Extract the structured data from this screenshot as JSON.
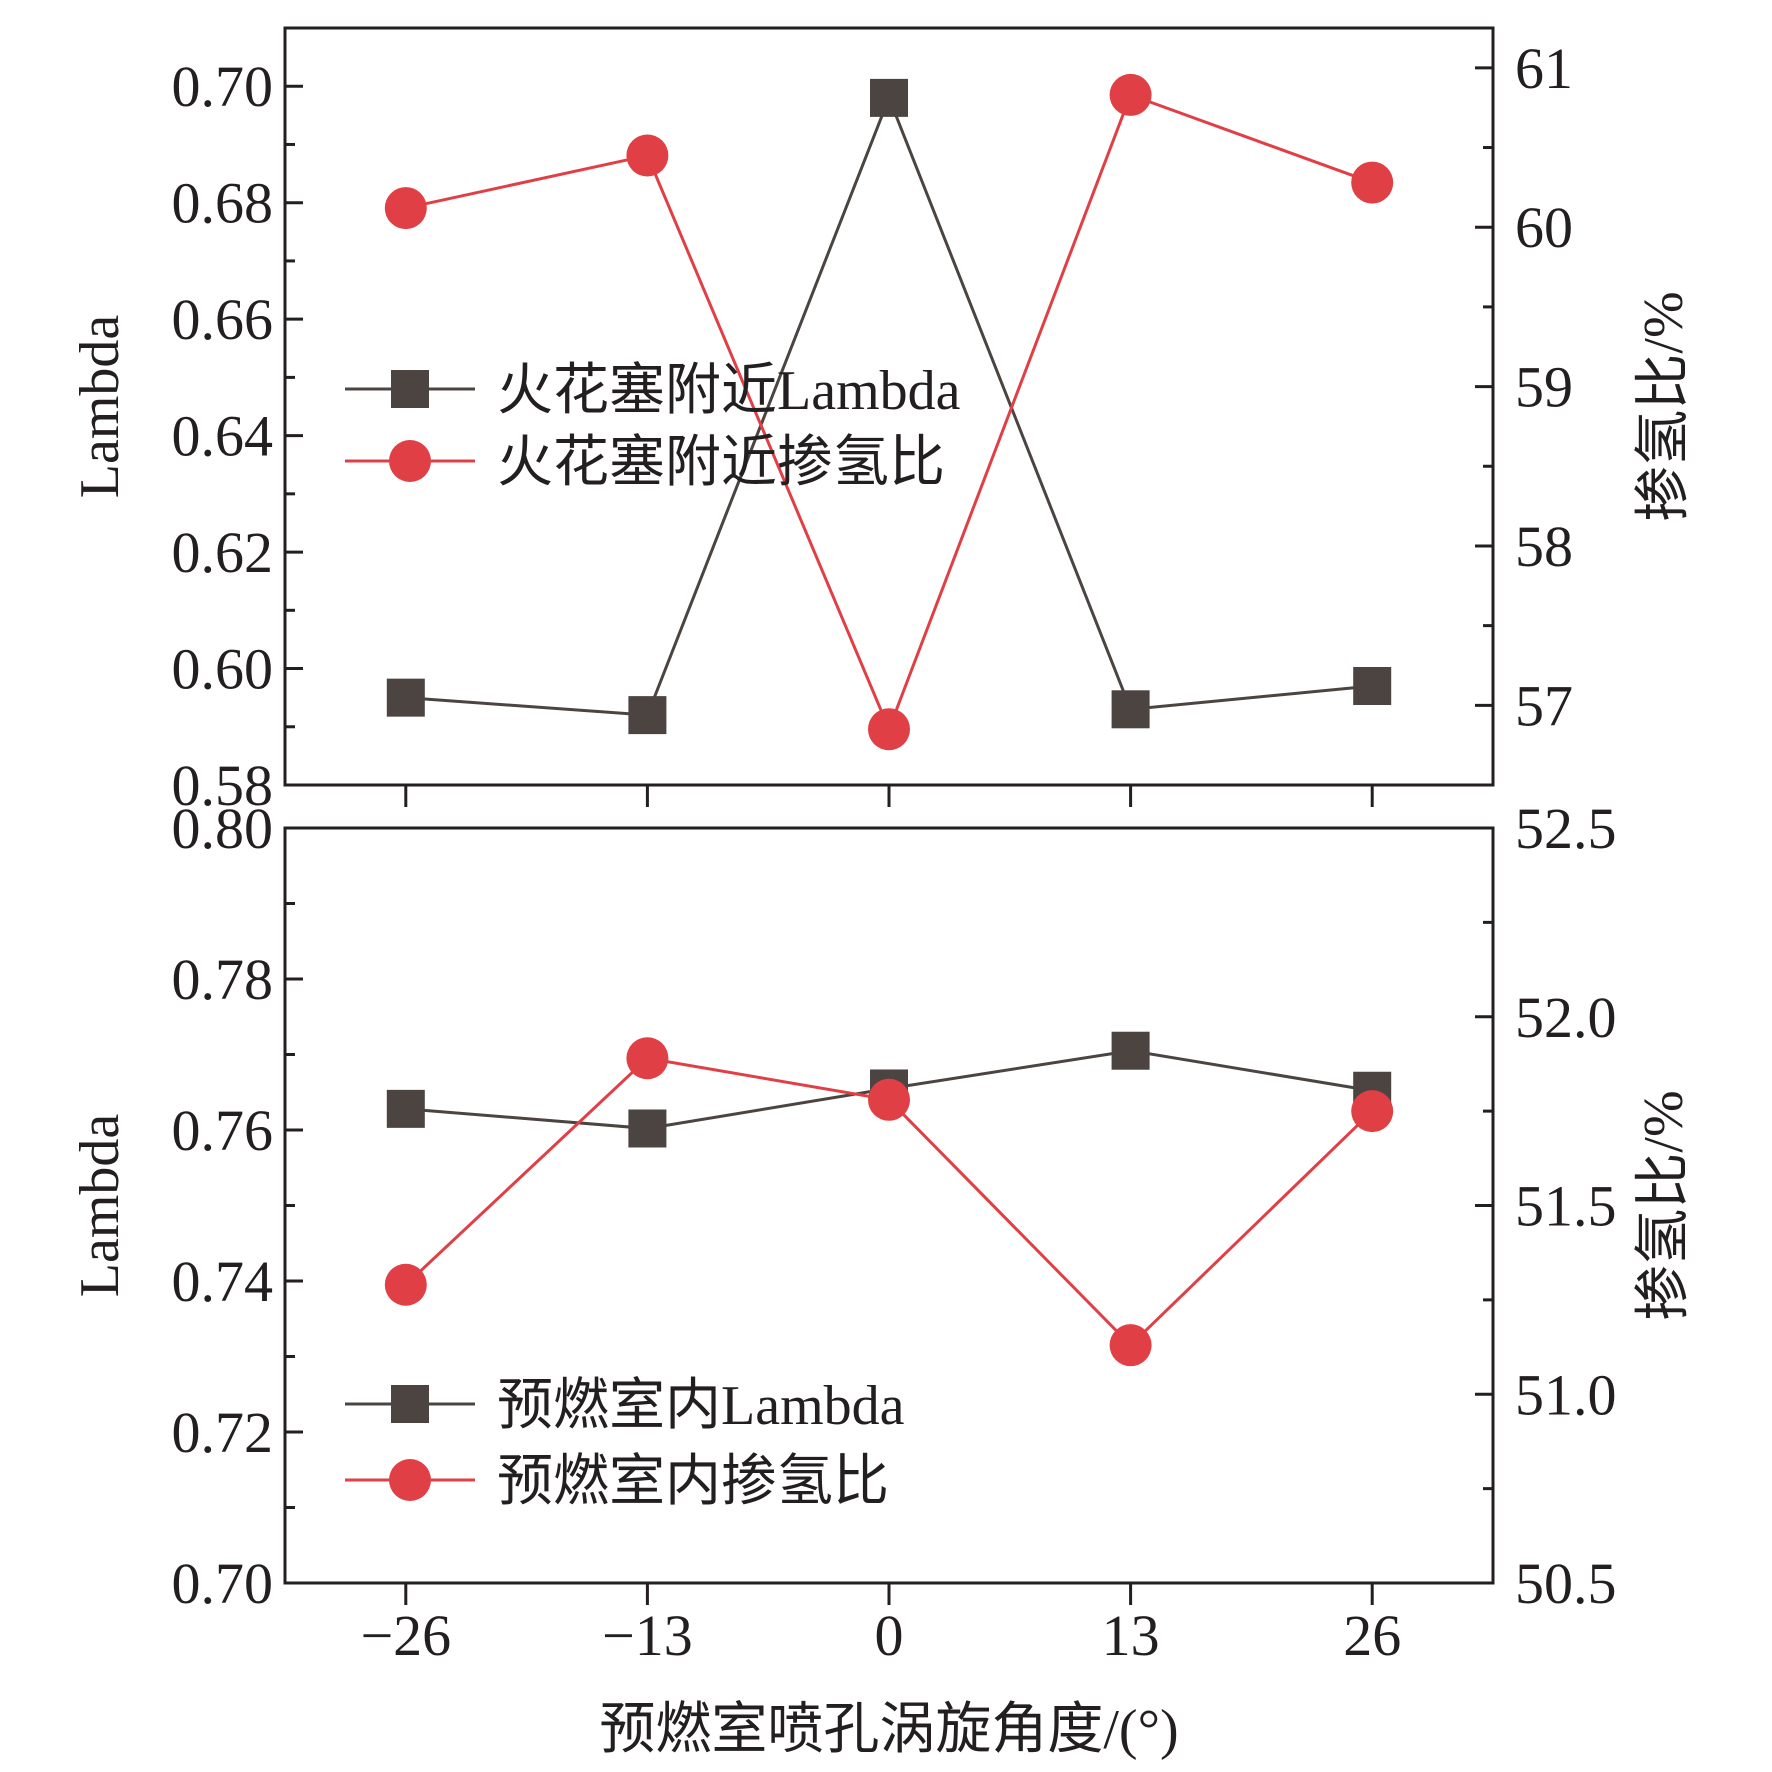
{
  "colors": {
    "lambda": "#4b4441",
    "hydrogen": "#e04045",
    "axis": "#231f20"
  },
  "xaxis": {
    "label": "预燃室喷孔涡旋角度/(°)",
    "ticks": [
      -26,
      -13,
      0,
      13,
      26
    ],
    "tick_labels": [
      "−26",
      "−13",
      "0",
      "13",
      "26"
    ]
  },
  "chart_data": [
    {
      "type": "line",
      "panel": "top",
      "x": [
        -26,
        -13,
        0,
        13,
        26
      ],
      "xlim": [
        -32.5,
        32.5
      ],
      "series": [
        {
          "name": "火花塞附近Lambda",
          "axis": "left",
          "marker": "square",
          "values": [
            0.595,
            0.592,
            0.698,
            0.593,
            0.597
          ]
        },
        {
          "name": "火花塞附近掺氢比",
          "axis": "right",
          "marker": "circle",
          "values": [
            60.12,
            60.45,
            56.85,
            60.83,
            60.28
          ]
        }
      ],
      "ylabel_left": "Lambda",
      "ylabel_right": "掺氢比/%",
      "ylim_left": [
        0.58,
        0.71
      ],
      "ylim_right": [
        56.5,
        61.25
      ],
      "yticks_left": [
        "0.58",
        "0.60",
        "0.62",
        "0.64",
        "0.66",
        "0.68",
        "0.70"
      ],
      "yticks_right": [
        "57",
        "58",
        "59",
        "60",
        "61"
      ],
      "legend_position": "middle-left"
    },
    {
      "type": "line",
      "panel": "bottom",
      "x": [
        -26,
        -13,
        0,
        13,
        26
      ],
      "xlim": [
        -32.5,
        32.5
      ],
      "series": [
        {
          "name": "预燃室内Lambda",
          "axis": "left",
          "marker": "square",
          "values": [
            0.7628,
            0.7602,
            0.7655,
            0.7705,
            0.7652
          ]
        },
        {
          "name": "预燃室内掺氢比",
          "axis": "right",
          "marker": "circle",
          "values": [
            51.29,
            51.89,
            51.78,
            51.13,
            51.75
          ]
        }
      ],
      "ylabel_left": "Lambda",
      "ylabel_right": "掺氢比/%",
      "ylim_left": [
        0.7,
        0.8
      ],
      "ylim_right": [
        50.5,
        52.5
      ],
      "yticks_left": [
        "0.70",
        "0.72",
        "0.74",
        "0.76",
        "0.78",
        "0.80"
      ],
      "yticks_right": [
        "50.5",
        "51.0",
        "51.5",
        "52.0",
        "52.5"
      ],
      "legend_position": "bottom-left"
    }
  ]
}
